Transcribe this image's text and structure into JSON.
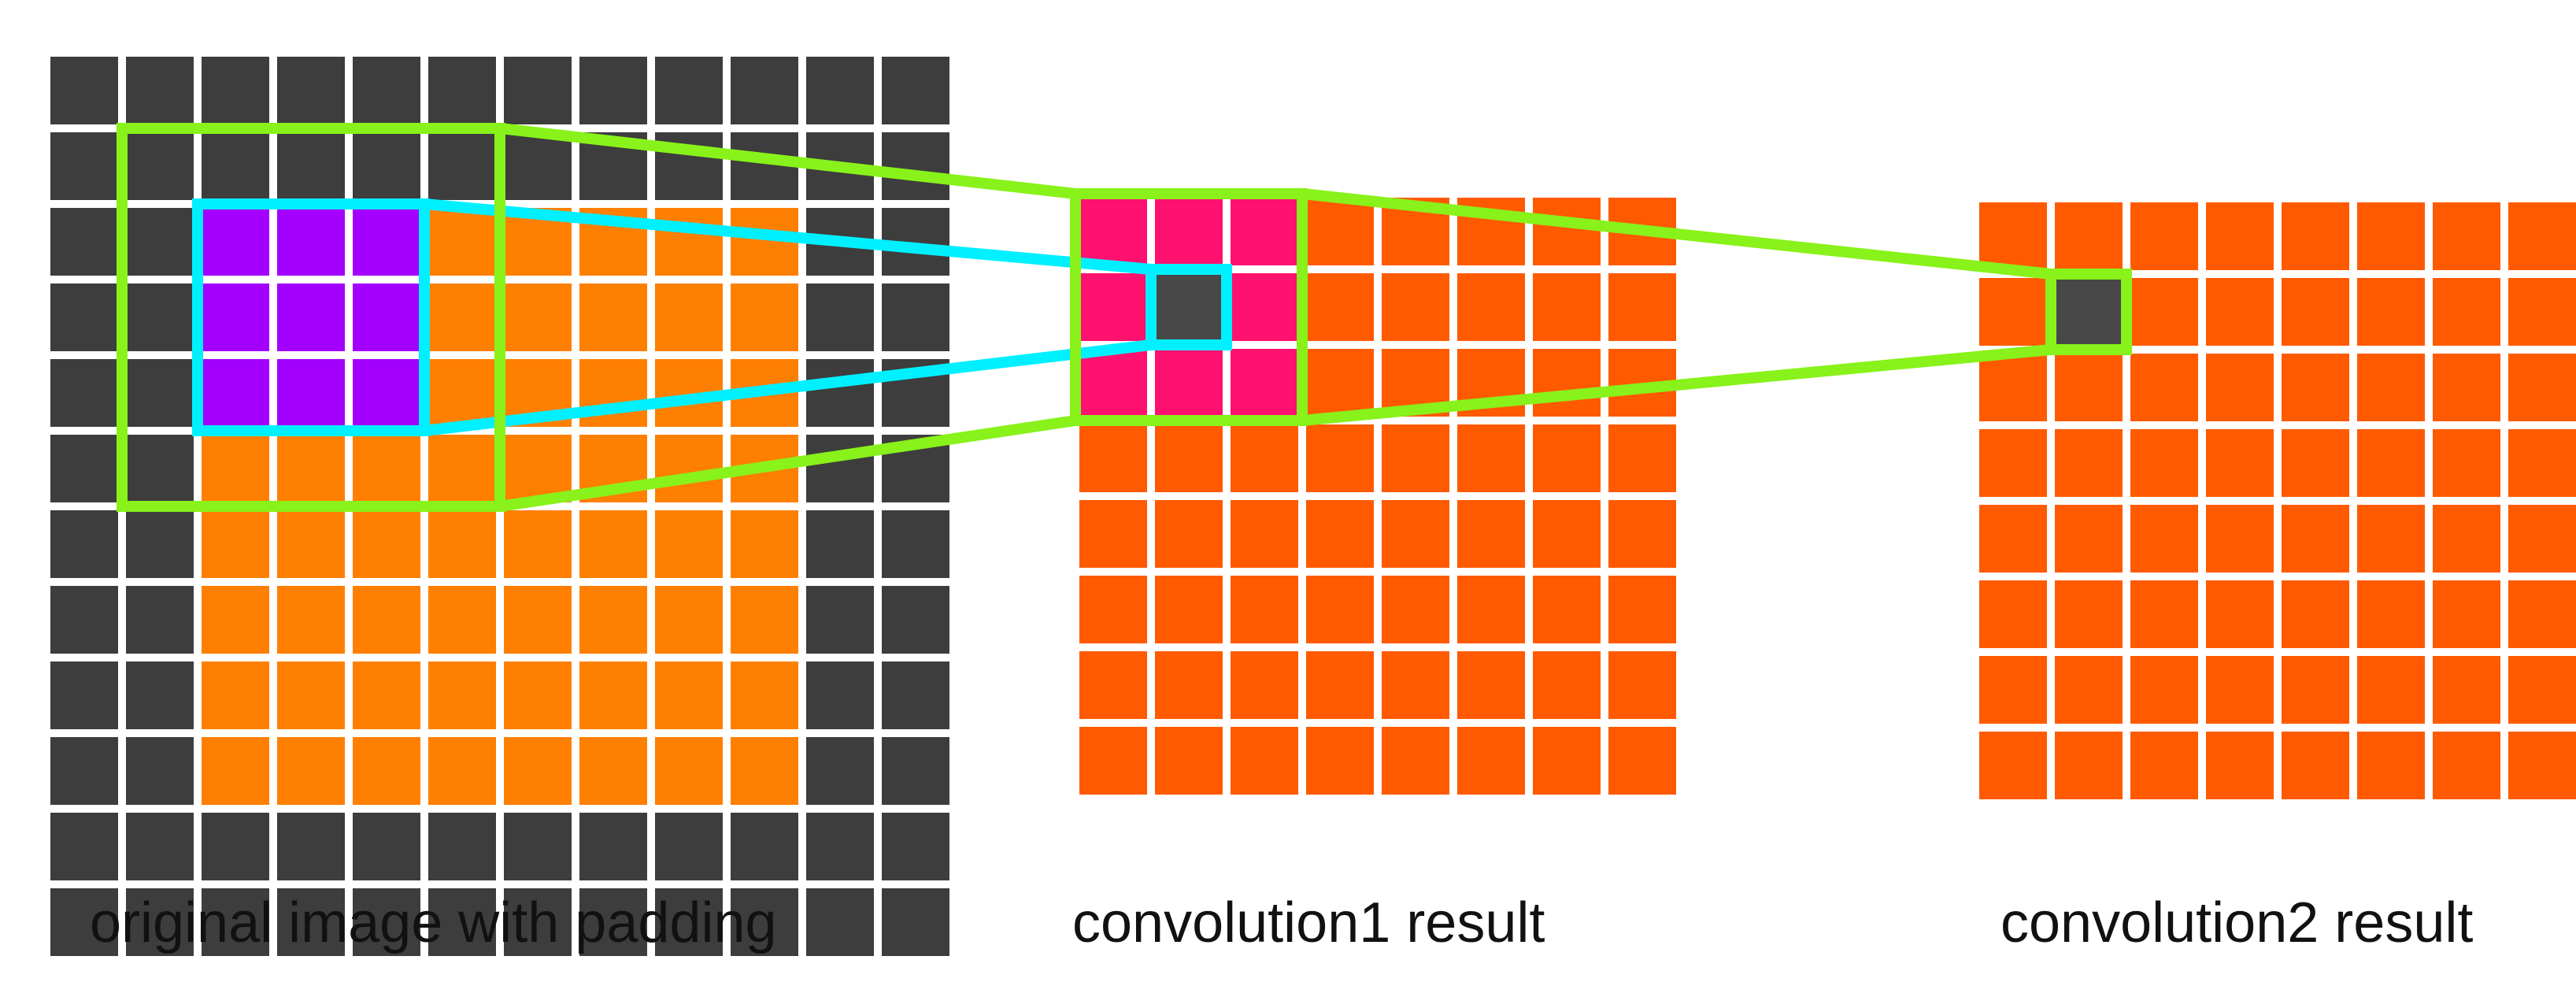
{
  "labels": {
    "original": "original image with padding",
    "conv1": "convolution1 result",
    "conv2": "convolution2 result"
  },
  "grids": {
    "original": {
      "rows": 12,
      "cols": 12,
      "padding": 2
    },
    "conv1": {
      "rows": 8,
      "cols": 8
    },
    "conv2": {
      "rows": 8,
      "cols": 8
    }
  },
  "receptive_fields": {
    "conv1_kernel_on_original": {
      "size": 3,
      "row": 2,
      "col": 2
    },
    "conv2_field_on_original": {
      "size": 5,
      "row": 1,
      "col": 1
    },
    "conv2_kernel_on_conv1": {
      "size": 3,
      "row": 0,
      "col": 0
    },
    "conv1_output_cell": {
      "row": 1,
      "col": 1
    },
    "conv2_output_cell": {
      "row": 1,
      "col": 1
    }
  },
  "colors": {
    "padding": "#3d3d3d",
    "image": "#ff7f00",
    "conv_result": "#ff5a00",
    "kernel_on_original": "#a300ff",
    "kernel_on_conv1": "#ff1170",
    "output_cell": "#484848",
    "outline_conv1": "#00f0ff",
    "outline_conv2": "#88f21a",
    "gap": "#ffffff"
  }
}
